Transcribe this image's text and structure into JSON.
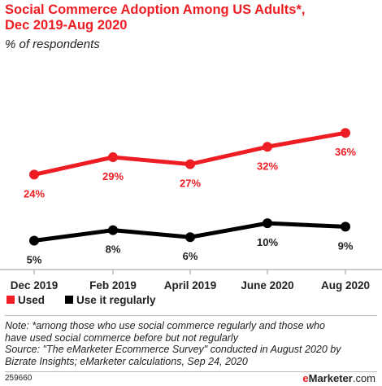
{
  "title_line1": "Social Commerce Adoption Among US Adults*,",
  "title_line2": "Dec 2019-Aug 2020",
  "subtitle": "% of respondents",
  "chart_data": {
    "type": "line",
    "categories": [
      "Dec 2019",
      "Feb 2019",
      "April 2019",
      "June 2020",
      "Aug 2020"
    ],
    "series": [
      {
        "name": "Used",
        "color": "#ee1d23",
        "values": [
          24,
          29,
          27,
          32,
          36
        ],
        "labels": [
          "24%",
          "29%",
          "27%",
          "32%",
          "36%"
        ]
      },
      {
        "name": "Use it regularly",
        "color": "#000000",
        "values": [
          5,
          8,
          6,
          10,
          9
        ],
        "labels": [
          "5%",
          "8%",
          "6%",
          "10%",
          "9%"
        ]
      }
    ],
    "legend": "bottom-left",
    "grid": false
  },
  "footnote_line1": "Note: *among those who use social commerce regularly and those who",
  "footnote_line2": "have used social commerce before but not regularly",
  "footnote_line3": "Source: \"The eMarketer Ecommerce Survey\" conducted in August 2020 by",
  "footnote_line4": "Bizrate Insights; eMarketer calculations, Sep 24, 2020",
  "chart_code": "259660",
  "brand": {
    "e": "e",
    "rest": "Marketer",
    "suffix": ".com"
  }
}
